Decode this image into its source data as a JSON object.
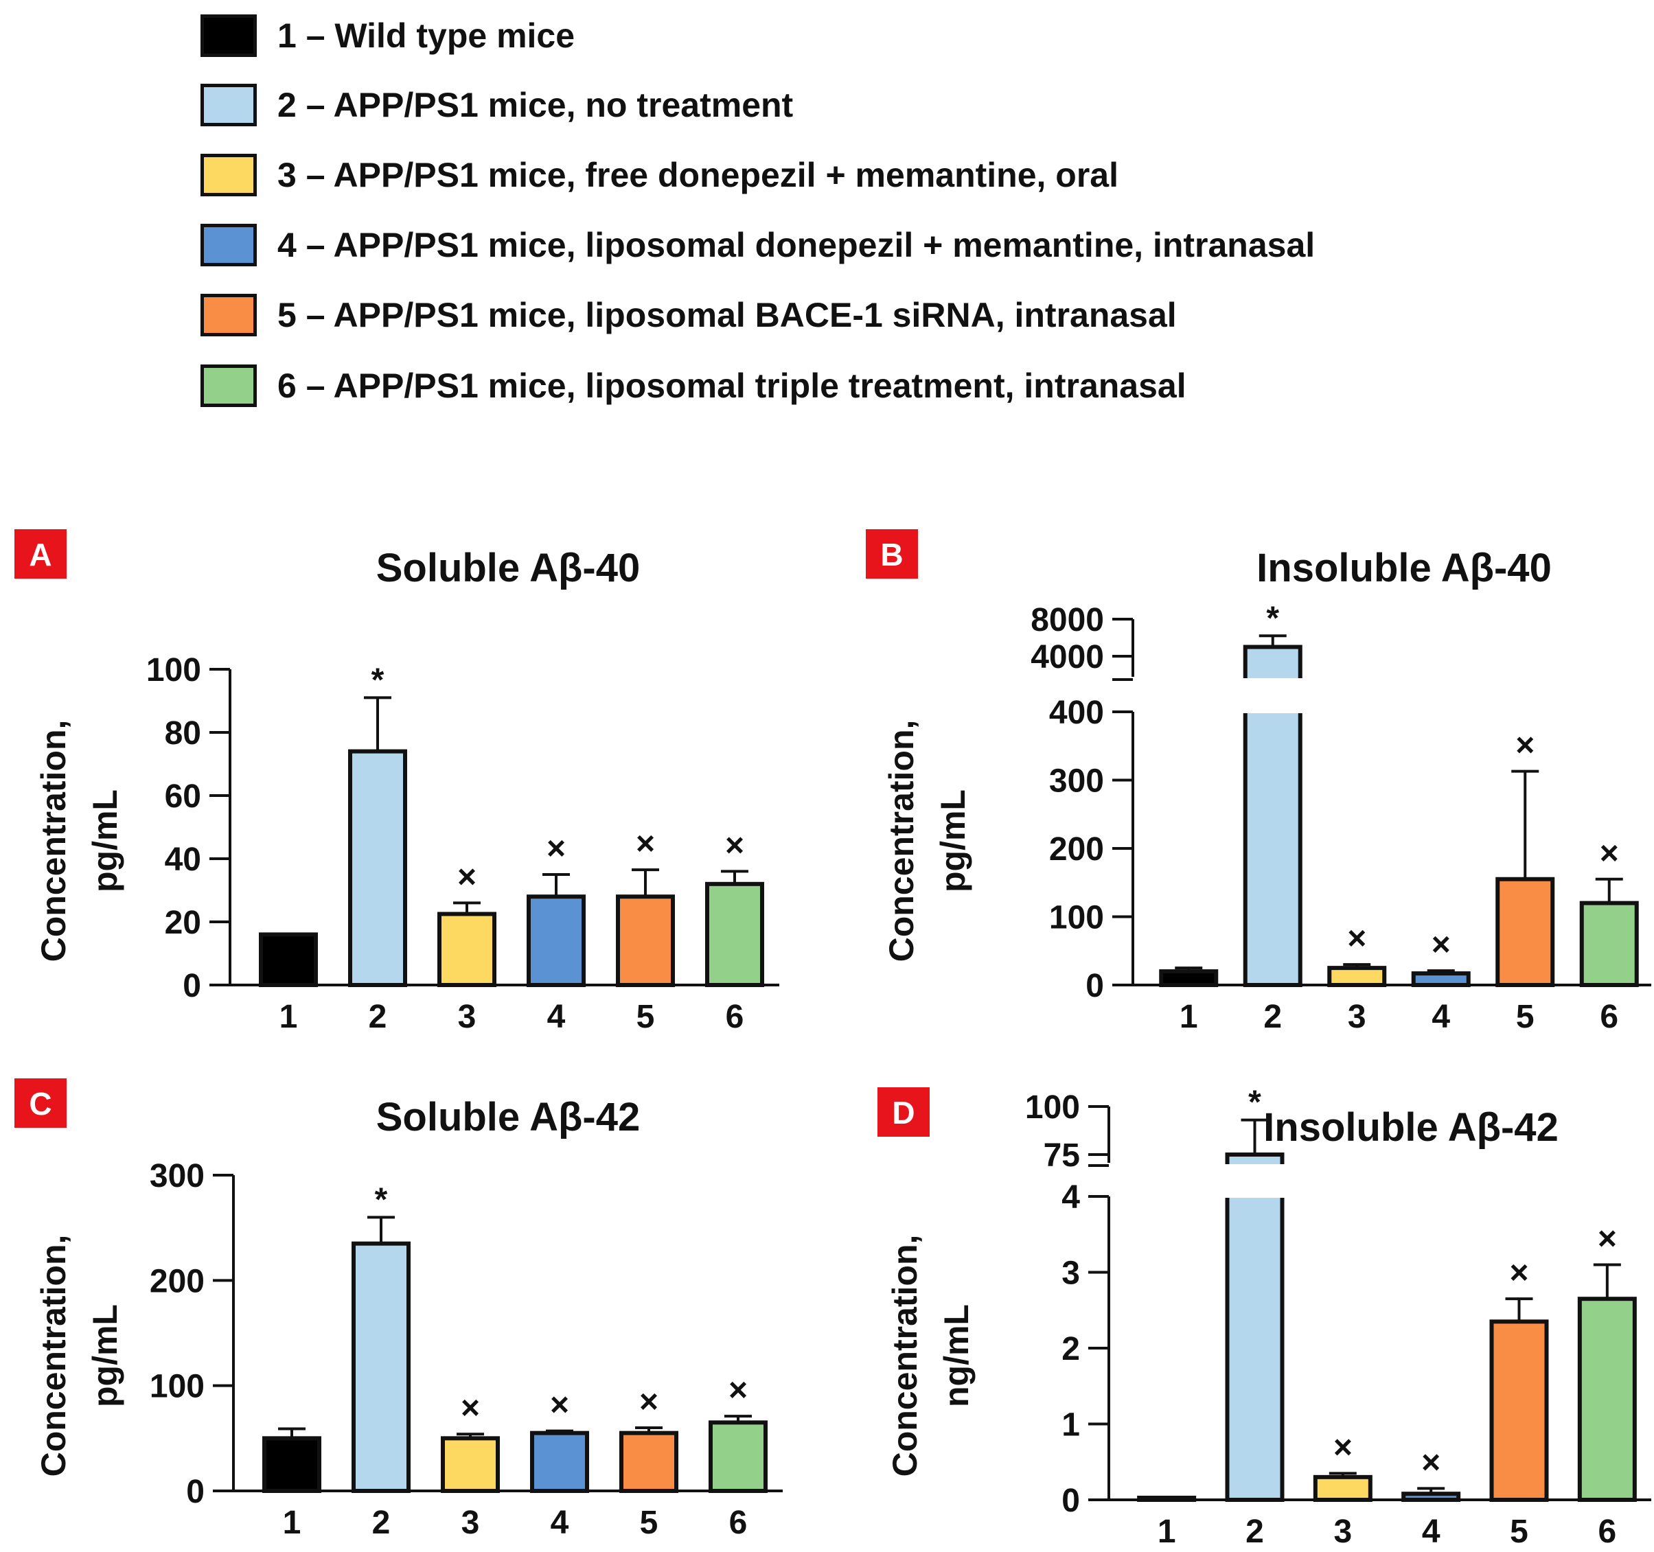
{
  "legend": [
    {
      "label": "1 – Wild type mice",
      "color": "#000000"
    },
    {
      "label": "2 – APP/PS1 mice, no treatment",
      "color": "#b4d7ee"
    },
    {
      "label": "3 – APP/PS1 mice, free donepezil + memantine, oral",
      "color": "#fdd962"
    },
    {
      "label": "4 – APP/PS1 mice, liposomal donepezil + memantine, intranasal",
      "color": "#5b92d4"
    },
    {
      "label": "5 – APP/PS1 mice, liposomal BACE-1 siRNA, intranasal",
      "color": "#f98d46"
    },
    {
      "label": "6 – APP/PS1 mice, liposomal triple treatment, intranasal",
      "color": "#93d08a"
    }
  ],
  "panel_label_color": "#e8141b",
  "chart_data": [
    {
      "panel": "A",
      "type": "bar",
      "title": "Soluble Aβ-40",
      "ylabel_lines": [
        "Concentration,",
        "pg/mL"
      ],
      "categories": [
        "1",
        "2",
        "3",
        "4",
        "5",
        "6"
      ],
      "values": [
        16,
        74,
        22.5,
        28,
        28,
        32
      ],
      "errors": [
        0,
        17,
        3.5,
        7,
        8.5,
        4
      ],
      "marks": [
        "",
        "*",
        "×",
        "×",
        "×",
        "×"
      ],
      "ylim": [
        0,
        100
      ],
      "yticks": [
        0,
        20,
        40,
        60,
        80,
        100
      ],
      "ytick_labels": [
        "0",
        "20",
        "40",
        "60",
        "80",
        "100"
      ]
    },
    {
      "panel": "B",
      "type": "bar",
      "title": "Insoluble Aβ-40",
      "ylabel_lines": [
        "Concentration,",
        "pg/mL"
      ],
      "categories": [
        "1",
        "2",
        "3",
        "4",
        "5",
        "6"
      ],
      "values": [
        20,
        5000,
        25,
        17,
        155,
        120
      ],
      "errors": [
        5,
        1200,
        5,
        4,
        158,
        35
      ],
      "marks": [
        "",
        "*",
        "×",
        "×",
        "×",
        "×"
      ],
      "ylim": [
        0,
        400
      ],
      "yticks": [
        0,
        100,
        200,
        300,
        400
      ],
      "ytick_labels": [
        "0",
        "100",
        "200",
        "300",
        "400"
      ],
      "axis_break": {
        "upper_ticks": [
          4000,
          8000
        ],
        "upper_labels": [
          "4000",
          "8000"
        ]
      }
    },
    {
      "panel": "C",
      "type": "bar",
      "title": "Soluble Aβ-42",
      "ylabel_lines": [
        "Concentration,",
        "pg/mL"
      ],
      "categories": [
        "1",
        "2",
        "3",
        "4",
        "5",
        "6"
      ],
      "values": [
        50,
        235,
        50,
        55,
        55,
        65
      ],
      "errors": [
        9,
        25,
        4,
        2,
        5,
        6
      ],
      "marks": [
        "",
        "*",
        "×",
        "×",
        "×",
        "×"
      ],
      "ylim": [
        0,
        300
      ],
      "yticks": [
        0,
        100,
        200,
        300
      ],
      "ytick_labels": [
        "0",
        "100",
        "200",
        "300"
      ]
    },
    {
      "panel": "D",
      "type": "bar",
      "title": "Insoluble Aβ-42",
      "ylabel_lines": [
        "Concentration,",
        "ng/mL"
      ],
      "categories": [
        "1",
        "2",
        "3",
        "4",
        "5",
        "6"
      ],
      "values": [
        0,
        75,
        0.3,
        0.08,
        2.35,
        2.65
      ],
      "errors": [
        0,
        18,
        0.05,
        0.07,
        0.3,
        0.45
      ],
      "marks": [
        "",
        "*",
        "×",
        "×",
        "×",
        "×"
      ],
      "ylim": [
        0,
        4
      ],
      "yticks": [
        0,
        1,
        2,
        3,
        4
      ],
      "ytick_labels": [
        "0",
        "1",
        "2",
        "3",
        "4"
      ],
      "axis_break": {
        "upper_ticks": [
          75,
          100
        ],
        "upper_labels": [
          "75",
          "100"
        ]
      }
    }
  ]
}
